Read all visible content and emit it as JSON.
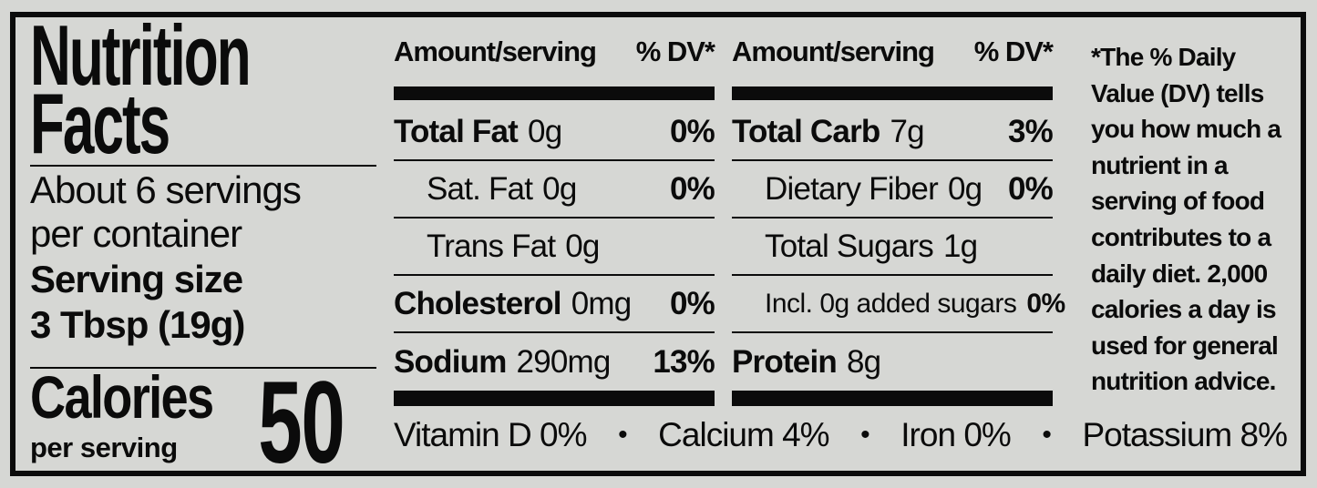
{
  "label": {
    "title": "Nutrition Facts",
    "servings_per_container": "About 6 servings per container",
    "serving_size_label": "Serving size",
    "serving_size_value": "3 Tbsp (19g)",
    "calories_label": "Calories",
    "calories_sublabel": "per serving",
    "calories_value": "50"
  },
  "columns": [
    {
      "header": {
        "amount": "Amount/serving",
        "dv": "% DV*"
      },
      "rows": [
        {
          "label": "Total Fat",
          "amount": "0g",
          "dv": "0%"
        },
        {
          "label": "Sat. Fat",
          "amount": "0g",
          "dv": "0%"
        },
        {
          "label": "Trans Fat",
          "amount": "0g",
          "dv": ""
        },
        {
          "label": "Cholesterol",
          "amount": "0mg",
          "dv": "0%"
        },
        {
          "label": "Sodium",
          "amount": "290mg",
          "dv": "13%"
        }
      ]
    },
    {
      "header": {
        "amount": "Amount/serving",
        "dv": "% DV*"
      },
      "rows": [
        {
          "label": "Total Carb",
          "amount": "7g",
          "dv": "3%"
        },
        {
          "label": "Dietary Fiber",
          "amount": "0g",
          "dv": "0%"
        },
        {
          "label": "Total Sugars",
          "amount": "1g",
          "dv": ""
        },
        {
          "label": "Incl. 0g added sugars",
          "amount": "",
          "dv": "0%"
        },
        {
          "label": "Protein",
          "amount": "8g",
          "dv": ""
        }
      ]
    }
  ],
  "micronutrients": {
    "separator": "•",
    "items": [
      "Vitamin D 0%",
      "Calcium 4%",
      "Iron 0%",
      "Potassium 8%"
    ]
  },
  "footnote": "*The % Daily\nValue (DV) tells\nyou how much a\nnutrient in a\nserving of food\ncontributes to a\ndaily diet. 2,000\ncalories a day is\nused for general\nnutrition advice.",
  "colors": {
    "background": "#d6d7d4",
    "ink": "#0b0b0b"
  }
}
